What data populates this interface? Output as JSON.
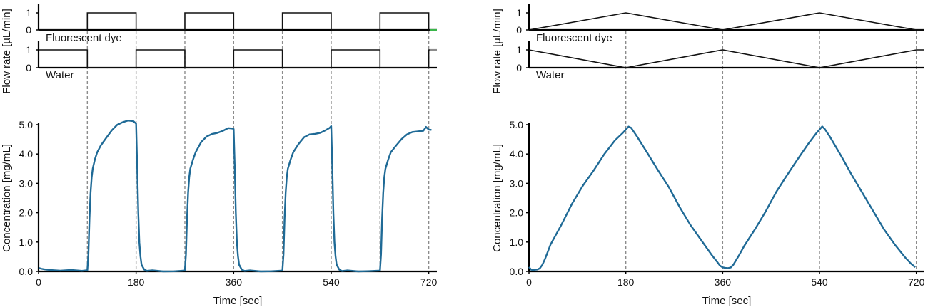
{
  "colors": {
    "trace": "#1f6a96",
    "flow_line": "#111111",
    "guide": "#8c8c8c",
    "green_marker": "#3ab54a",
    "gray_marker": "#8c8c8c"
  },
  "chart_data": [
    {
      "type": "line",
      "panel": "left",
      "flow_rate": {
        "ylabel": "Flow rate [µL/min]",
        "yticks": [
          "1",
          "0"
        ],
        "ylim": [
          0,
          1
        ],
        "fluorescent": {
          "name": "Fluorescent dye",
          "points": [
            [
              0,
              0
            ],
            [
              90,
              0
            ],
            [
              90,
              1
            ],
            [
              180,
              1
            ],
            [
              180,
              0
            ],
            [
              270,
              0
            ],
            [
              270,
              1
            ],
            [
              360,
              1
            ],
            [
              360,
              0
            ],
            [
              450,
              0
            ],
            [
              450,
              1
            ],
            [
              540,
              1
            ],
            [
              540,
              0
            ],
            [
              630,
              0
            ],
            [
              630,
              1
            ],
            [
              720,
              1
            ],
            [
              720,
              0
            ],
            [
              735,
              0
            ]
          ]
        },
        "water": {
          "name": "Water",
          "points": [
            [
              0,
              1
            ],
            [
              90,
              1
            ],
            [
              90,
              0
            ],
            [
              180,
              0
            ],
            [
              180,
              1
            ],
            [
              270,
              1
            ],
            [
              270,
              0
            ],
            [
              360,
              0
            ],
            [
              360,
              1
            ],
            [
              450,
              1
            ],
            [
              450,
              0
            ],
            [
              540,
              0
            ],
            [
              540,
              1
            ],
            [
              630,
              1
            ],
            [
              630,
              0
            ],
            [
              720,
              0
            ],
            [
              720,
              1
            ],
            [
              735,
              1
            ]
          ]
        }
      },
      "concentration": {
        "ylabel": "Concentration [mg/mL]",
        "xlabel": "Time [sec]",
        "ylim": [
          0,
          5
        ],
        "xlim": [
          0,
          735
        ],
        "yticks": [
          "0.0",
          "1.0",
          "2.0",
          "3.0",
          "4.0",
          "5.0"
        ],
        "xticks": [
          "0",
          "180",
          "360",
          "540",
          "720"
        ],
        "guides": [
          90,
          180,
          270,
          360,
          450,
          540,
          630,
          720
        ],
        "series": [
          {
            "x": [
              0,
              5,
              10,
              20,
              40,
              60,
              80,
              90,
              92,
              94,
              96,
              98,
              100,
              104,
              108,
              115,
              125,
              135,
              145,
              155,
              165,
              175,
              180,
              182,
              184,
              186,
              188,
              190,
              195,
              200,
              210,
              230,
              250,
              270,
              272,
              274,
              276,
              278,
              280,
              285,
              290,
              300,
              310,
              320,
              330,
              340,
              350,
              358,
              360,
              362,
              364,
              366,
              368,
              370,
              375,
              380,
              390,
              410,
              430,
              450,
              452,
              454,
              456,
              458,
              460,
              465,
              470,
              480,
              490,
              500,
              510,
              520,
              530,
              537,
              540,
              542,
              544,
              546,
              548,
              550,
              555,
              560,
              570,
              590,
              610,
              630,
              632,
              634,
              636,
              638,
              640,
              645,
              650,
              660,
              670,
              680,
              690,
              700,
              710,
              715,
              720,
              725
            ],
            "y": [
              0.12,
              0.1,
              0.09,
              0.06,
              0.04,
              0.03,
              0.02,
              0.02,
              0.6,
              1.8,
              2.7,
              3.2,
              3.5,
              3.8,
              4.05,
              4.35,
              4.55,
              4.75,
              4.95,
              5.1,
              5.2,
              5.15,
              5.05,
              3.6,
              2.0,
              1.0,
              0.5,
              0.25,
              0.08,
              0.03,
              0.02,
              0.01,
              0.01,
              0.01,
              0.6,
              1.8,
              2.7,
              3.2,
              3.5,
              3.8,
              4.05,
              4.35,
              4.55,
              4.7,
              4.78,
              4.82,
              4.85,
              4.85,
              4.8,
              3.6,
              2.0,
              1.0,
              0.5,
              0.25,
              0.08,
              0.03,
              0.02,
              0.01,
              0.01,
              0.01,
              0.6,
              1.8,
              2.7,
              3.2,
              3.5,
              3.8,
              4.05,
              4.35,
              4.52,
              4.62,
              4.7,
              4.78,
              4.85,
              4.95,
              4.9,
              3.6,
              2.0,
              1.0,
              0.5,
              0.25,
              0.08,
              0.03,
              0.02,
              0.01,
              0.01,
              0.01,
              0.6,
              1.8,
              2.7,
              3.2,
              3.5,
              3.8,
              4.05,
              4.35,
              4.52,
              4.62,
              4.7,
              4.78,
              4.85,
              4.87,
              4.85,
              4.85
            ]
          }
        ]
      }
    },
    {
      "type": "line",
      "panel": "right",
      "flow_rate": {
        "ylabel": "Flow rate [µL/min]",
        "yticks": [
          "1",
          "0"
        ],
        "ylim": [
          0,
          1
        ],
        "fluorescent": {
          "name": "Fluorescent dye",
          "points": [
            [
              0,
              0
            ],
            [
              180,
              1
            ],
            [
              360,
              0
            ],
            [
              540,
              1
            ],
            [
              720,
              0
            ],
            [
              735,
              0
            ]
          ]
        },
        "water": {
          "name": "Water",
          "points": [
            [
              0,
              1
            ],
            [
              180,
              0
            ],
            [
              360,
              1
            ],
            [
              540,
              0
            ],
            [
              720,
              1
            ],
            [
              735,
              1
            ]
          ]
        }
      },
      "concentration": {
        "ylabel": "Concentration [mg/mL]",
        "xlabel": "Time [sec]",
        "ylim": [
          0,
          5
        ],
        "xlim": [
          0,
          735
        ],
        "yticks": [
          "0.0",
          "1.0",
          "2.0",
          "3.0",
          "4.0",
          "5.0"
        ],
        "xticks": [
          "0",
          "180",
          "360",
          "540",
          "720"
        ],
        "guides": [
          180,
          360,
          540,
          720
        ],
        "series": [
          {
            "x": [
              0,
              4,
              8,
              12,
              16,
              20,
              25,
              30,
              40,
              60,
              80,
              100,
              120,
              140,
              160,
              175,
              180,
              185,
              190,
              200,
              220,
              240,
              260,
              280,
              300,
              320,
              340,
              350,
              355,
              360,
              365,
              370,
              375,
              380,
              385,
              390,
              400,
              420,
              440,
              460,
              480,
              500,
              520,
              535,
              540,
              545,
              550,
              560,
              580,
              600,
              620,
              640,
              660,
              680,
              700,
              710,
              718
            ],
            "y": [
              0.15,
              0.08,
              0.05,
              0.04,
              0.06,
              0.12,
              0.25,
              0.45,
              0.9,
              1.6,
              2.3,
              2.9,
              3.45,
              4.0,
              4.45,
              4.75,
              4.85,
              4.95,
              4.9,
              4.6,
              4.05,
              3.45,
              2.85,
              2.2,
              1.6,
              1.05,
              0.55,
              0.3,
              0.18,
              0.13,
              0.12,
              0.12,
              0.15,
              0.25,
              0.4,
              0.55,
              0.85,
              1.45,
              2.05,
              2.7,
              3.3,
              3.85,
              4.35,
              4.75,
              4.85,
              4.95,
              4.85,
              4.55,
              3.95,
              3.3,
              2.65,
              2.05,
              1.45,
              0.9,
              0.45,
              0.25,
              0.15
            ]
          }
        ]
      }
    }
  ]
}
